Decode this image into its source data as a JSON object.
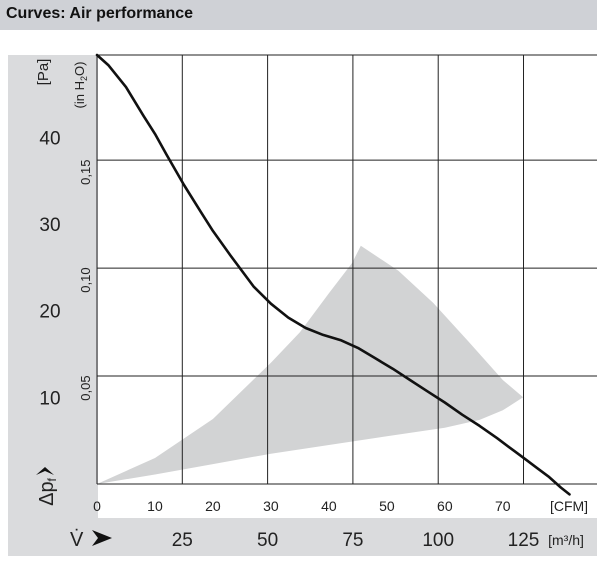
{
  "header": {
    "title": "Curves: Air performance"
  },
  "chart_data": {
    "type": "line",
    "title": "Curves: Air performance",
    "xlabel": "V̇",
    "ylabel": "Δpf",
    "x_unit_primary": "[CFM]",
    "x_unit_secondary": "[m³/h]",
    "y_unit_primary": "[Pa]",
    "y_unit_secondary": "(in H2O)",
    "xlim": [
      0,
      86.25
    ],
    "ylim": [
      0,
      49.5
    ],
    "x_ticks_cfm": [
      "0",
      "10",
      "20",
      "30",
      "40",
      "50",
      "60",
      "70"
    ],
    "x_ticks_cfm_values": [
      0,
      10,
      20,
      30,
      40,
      50,
      60,
      70
    ],
    "x_ticks_m3h": [
      "25",
      "50",
      "75",
      "100",
      "125"
    ],
    "x_ticks_m3h_values": [
      25,
      50,
      75,
      100,
      125
    ],
    "y_ticks_pa": [
      "10",
      "20",
      "30",
      "40"
    ],
    "y_ticks_pa_values": [
      10,
      20,
      30,
      40
    ],
    "y_ticks_inh2o": [
      "0,05",
      "0,10",
      "0,15"
    ],
    "y_ticks_inh2o_values": [
      0.05,
      0.1,
      0.15
    ],
    "grid": true,
    "series": [
      {
        "x": [
          0,
          2,
          5,
          8,
          10,
          12,
          15,
          18,
          20,
          23,
          27,
          30,
          33,
          36,
          39,
          42,
          45,
          48,
          51,
          54,
          57,
          60,
          63,
          66,
          69,
          72,
          74,
          76,
          78,
          80,
          81.5
        ],
        "y": [
          49.5,
          48.3,
          45.8,
          42.5,
          40.4,
          38.0,
          34.5,
          31.3,
          29.2,
          26.4,
          22.8,
          20.8,
          19.2,
          18.0,
          17.2,
          16.6,
          15.7,
          14.5,
          13.3,
          12.0,
          10.7,
          9.4,
          8.0,
          6.7,
          5.3,
          3.8,
          2.8,
          1.8,
          0.8,
          -0.4,
          -1.2
        ]
      }
    ],
    "operating_area": {
      "color": "#d2d3d4",
      "upper": {
        "x": [
          0,
          10,
          20,
          30,
          35,
          40,
          44,
          45.5,
          52,
          58,
          64,
          70,
          73.5
        ],
        "y": [
          0,
          3,
          7.5,
          14,
          17.5,
          22,
          25.5,
          27.5,
          24.6,
          20.9,
          16.5,
          12,
          10
        ]
      },
      "lower": {
        "x": [
          73.5,
          70,
          66,
          60,
          50,
          40,
          30,
          20,
          10,
          0
        ],
        "y": [
          10,
          8.5,
          7.4,
          6.5,
          5.5,
          4.5,
          3.5,
          2.3,
          1.1,
          0
        ]
      }
    },
    "colors": {
      "curve": "#111111",
      "grid": "#222222",
      "band": "#dadbdd"
    }
  }
}
